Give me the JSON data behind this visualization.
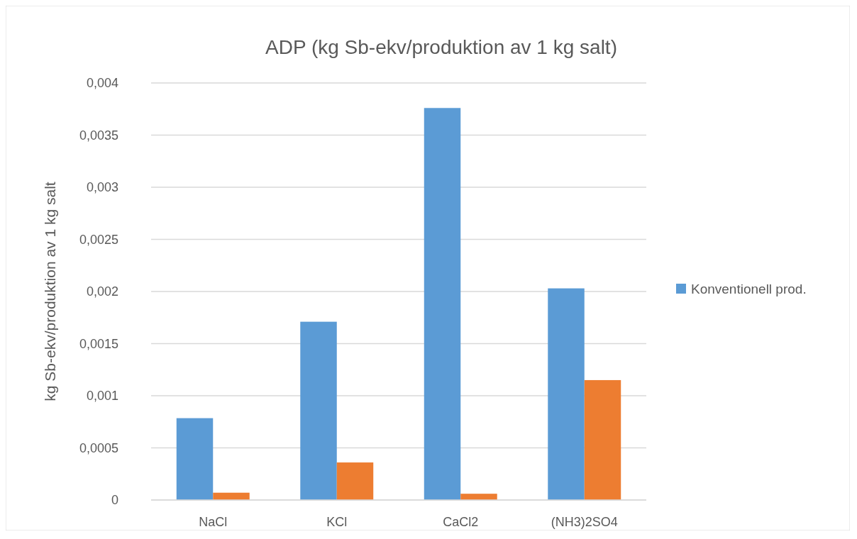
{
  "chart_data": {
    "type": "bar",
    "title": "ADP (kg Sb-ekv/produktion av 1 kg salt)",
    "ylabel": "kg Sb-ekv/produktion av 1 kg salt",
    "categories": [
      "NaCl",
      "KCl",
      "CaCl2",
      "(NH3)2SO4"
    ],
    "series": [
      {
        "name": "Konventionell prod.",
        "color": "#5b9bd5",
        "values": [
          0.000785,
          0.00171,
          0.00376,
          0.00203
        ]
      },
      {
        "color": "#ed7d31",
        "values": [
          7e-05,
          0.00036,
          6e-05,
          0.00115
        ]
      }
    ],
    "ylim": [
      0,
      0.004
    ],
    "yticks": [
      {
        "value": 0,
        "label": "0"
      },
      {
        "value": 0.0005,
        "label": "0,0005"
      },
      {
        "value": 0.001,
        "label": "0,001"
      },
      {
        "value": 0.0015,
        "label": "0,0015"
      },
      {
        "value": 0.002,
        "label": "0,002"
      },
      {
        "value": 0.0025,
        "label": "0,0025"
      },
      {
        "value": 0.003,
        "label": "0,003"
      },
      {
        "value": 0.0035,
        "label": "0,0035"
      },
      {
        "value": 0.004,
        "label": "0,004"
      }
    ],
    "grid": "y",
    "legend": "right"
  }
}
